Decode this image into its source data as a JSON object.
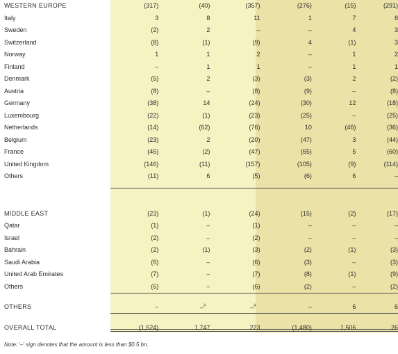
{
  "rows": [
    {
      "label": "WESTERN EUROPE",
      "v": [
        "(317)",
        "(40)",
        "(357)",
        "(276)",
        "(15)",
        "(291)"
      ],
      "kind": "head"
    },
    {
      "label": "Italy",
      "v": [
        "3",
        "8",
        "11",
        "1",
        "7",
        "8"
      ]
    },
    {
      "label": "Sweden",
      "v": [
        "(2)",
        "2",
        "–",
        "–",
        "4",
        "3"
      ]
    },
    {
      "label": "Switzerland",
      "v": [
        "(8)",
        "(1)",
        "(9)",
        "4",
        "(1)",
        "3"
      ]
    },
    {
      "label": "Norway",
      "v": [
        "1",
        "1",
        "2",
        "–",
        "1",
        "2"
      ]
    },
    {
      "label": "Finland",
      "v": [
        "–",
        "1",
        "1",
        "–",
        "1",
        "1"
      ]
    },
    {
      "label": "Denmark",
      "v": [
        "(5)",
        "2",
        "(3)",
        "(3)",
        "2",
        "(2)"
      ]
    },
    {
      "label": "Austria",
      "v": [
        "(8)",
        "–",
        "(8)",
        "(9)",
        "–",
        "(8)"
      ]
    },
    {
      "label": "Germany",
      "v": [
        "(38)",
        "14",
        "(24)",
        "(30)",
        "12",
        "(18)"
      ]
    },
    {
      "label": "Luxembourg",
      "v": [
        "(22)",
        "(1)",
        "(23)",
        "(25)",
        "–",
        "(25)"
      ]
    },
    {
      "label": "Netherlands",
      "v": [
        "(14)",
        "(62)",
        "(76)",
        "10",
        "(46)",
        "(36)"
      ]
    },
    {
      "label": "Belgium",
      "v": [
        "(23)",
        "2",
        "(20)",
        "(47)",
        "3",
        "(44)"
      ]
    },
    {
      "label": "France",
      "v": [
        "(45)",
        "(2)",
        "(47)",
        "(65)",
        "5",
        "(60)"
      ]
    },
    {
      "label": "United Kingdom",
      "v": [
        "(146)",
        "(11)",
        "(157)",
        "(105)",
        "(9)",
        "(114)"
      ]
    },
    {
      "label": "Others",
      "v": [
        "(11)",
        "6",
        "(5)",
        "(6)",
        "6",
        "–"
      ]
    },
    {
      "label": "MIDDLE EAST",
      "v": [
        "(23)",
        "(1)",
        "(24)",
        "(15)",
        "(2)",
        "(17)"
      ],
      "kind": "head"
    },
    {
      "label": "Qatar",
      "v": [
        "(1)",
        "–",
        "(1)",
        "–",
        "–",
        "–"
      ]
    },
    {
      "label": "Israel",
      "v": [
        "(2)",
        "–",
        "(2)",
        "–",
        "–",
        "–"
      ]
    },
    {
      "label": "Bahrain",
      "v": [
        "(2)",
        "(1)",
        "(3)",
        "(2)",
        "(1)",
        "(3)"
      ]
    },
    {
      "label": "Saudi Arabia",
      "v": [
        "(6)",
        "–",
        "(6)",
        "(3)",
        "–",
        "(3)"
      ]
    },
    {
      "label": "United Arab Emirates",
      "v": [
        "(7)",
        "–",
        "(7)",
        "(8)",
        "(1)",
        "(9)"
      ]
    },
    {
      "label": "Others",
      "v": [
        "(6)",
        "–",
        "(6)",
        "(2)",
        "–",
        "(2)"
      ]
    },
    {
      "label": "OTHERS",
      "v": [
        "–",
        "–",
        "–",
        "–",
        "6",
        "6"
      ],
      "kind": "head"
    },
    {
      "label": "OVERALL TOTAL",
      "v": [
        "(1,524)",
        "1,747",
        "223",
        "(1,480)",
        "1,506",
        "26"
      ],
      "kind": "total"
    }
  ],
  "footnote_mark": "#",
  "note": "Note: '–' sign denotes that the amount is less than $0.5 bn."
}
